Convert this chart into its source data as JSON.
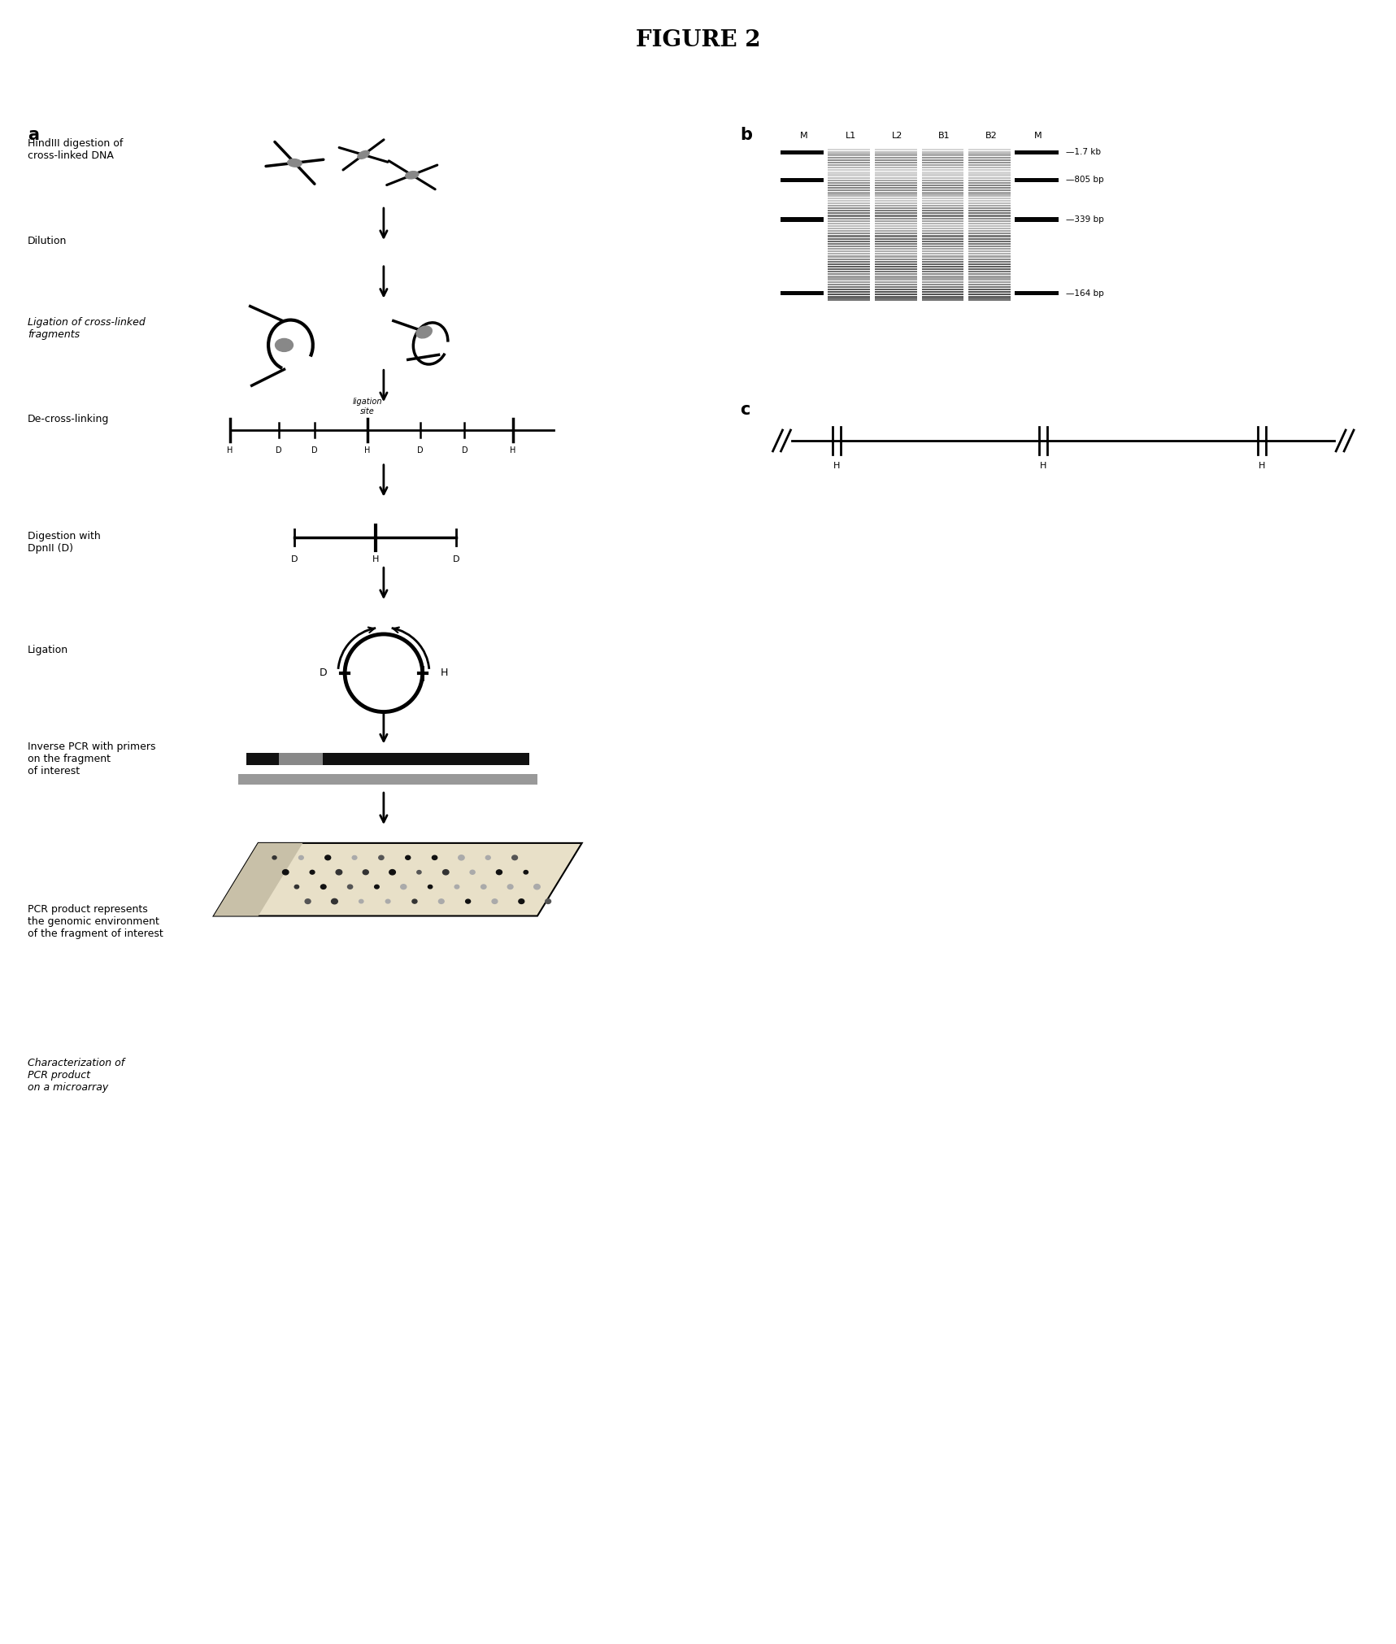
{
  "title": "FIGURE 2",
  "bg_color": "#ffffff",
  "panel_a_label": "a",
  "panel_b_label": "b",
  "panel_c_label": "c",
  "step_labels": [
    "HindIII digestion of\ncross-linked DNA",
    "Dilution",
    "Ligation of cross-linked\nfragments",
    "De-cross-linking",
    "Digestion with\nDpnII (D)",
    "Ligation",
    "Inverse PCR with primers\non the fragment\nof interest",
    "PCR product represents\nthe genomic environment\nof the fragment of interest",
    "Characterization of\nPCR product\non a microarray"
  ],
  "step_italic": [
    false,
    false,
    true,
    false,
    false,
    false,
    false,
    false,
    true
  ],
  "gel_labels": [
    "M",
    "L1",
    "L2",
    "B1",
    "B2",
    "M"
  ],
  "gel_markers": [
    "1.7 kb",
    "805 bp",
    "339 bp",
    "164 bp"
  ],
  "linear_labels": [
    "H",
    "D",
    "D",
    "H",
    "D",
    "D",
    "H"
  ],
  "frag_labels": [
    "D",
    "H",
    "D"
  ],
  "panel_c_labels": [
    "H",
    "H",
    "H"
  ]
}
